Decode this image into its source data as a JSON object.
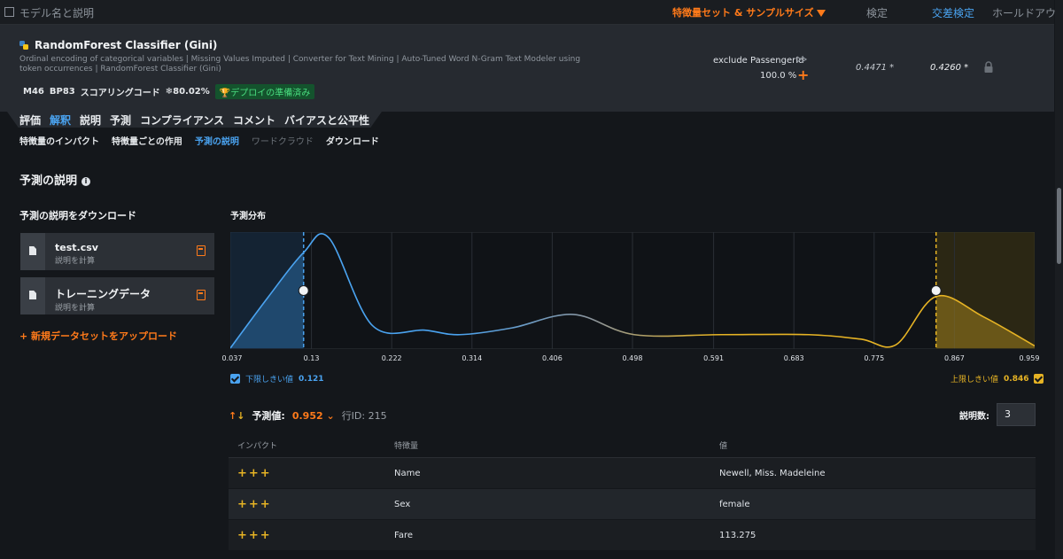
{
  "header": {
    "model_col": "モデル名と説明",
    "featureset": "特徴量セット & サンプルサイズ",
    "validation": "検定",
    "cross_validation": "交差検定",
    "holdout": "ホールドアウト"
  },
  "model": {
    "name": "RandomForest Classifier (Gini)",
    "description": "Ordinal encoding of categorical variables | Missing Values Imputed | Converter for Text Mining | Auto-Tuned Word N-Gram Text Modeler using token occurrences | RandomForest Classifier (Gini)",
    "m": "M46",
    "bp": "BP83",
    "scoring": "スコアリングコード",
    "pct": "❄80.02%",
    "deploy": "デプロイの準備済み",
    "featureset": "exclude PassengerId",
    "sample": "100.0 %",
    "score_validation": "0.4471 *",
    "score_cross": "0.4260 *"
  },
  "tabs": [
    "評価",
    "解釈",
    "説明",
    "予測",
    "コンプライアンス",
    "コメント",
    "バイアスと公平性"
  ],
  "subtabs": [
    "特徴量のインパクト",
    "特徴量ごとの作用",
    "予測の説明",
    "ワードクラウド",
    "ダウンロード"
  ],
  "section_title": "予測の説明",
  "download": {
    "title": "予測の説明をダウンロード",
    "files": [
      {
        "name": "test.csv",
        "sub": "説明を計算"
      },
      {
        "name": "トレーニングデータ",
        "sub": "説明を計算"
      }
    ],
    "upload": "+ 新規データセットをアップロード"
  },
  "distribution": {
    "title": "予測分布",
    "ticks": [
      "0.037",
      "0.13",
      "0.222",
      "0.314",
      "0.406",
      "0.498",
      "0.591",
      "0.683",
      "0.775",
      "0.867",
      "0.959"
    ],
    "low_label": "下限しきい値",
    "low_value": "0.121",
    "high_label": "上限しきい値",
    "high_value": "0.846",
    "colors": {
      "low": "#4aa3f0",
      "high": "#e6b324",
      "mid": "#8b949c"
    }
  },
  "chart_data": {
    "type": "area",
    "title": "予測分布",
    "x_ticks": [
      0.037,
      0.13,
      0.222,
      0.314,
      0.406,
      0.498,
      0.591,
      0.683,
      0.775,
      0.867,
      0.959
    ],
    "xlim": [
      0.037,
      0.959
    ],
    "x": [
      0.037,
      0.08,
      0.121,
      0.15,
      0.2,
      0.26,
      0.3,
      0.36,
      0.43,
      0.5,
      0.6,
      0.7,
      0.76,
      0.8,
      0.846,
      0.9,
      0.959
    ],
    "density": [
      0.0,
      0.45,
      0.85,
      0.98,
      0.2,
      0.16,
      0.12,
      0.18,
      0.3,
      0.12,
      0.12,
      0.12,
      0.08,
      0.03,
      0.46,
      0.28,
      0.02
    ],
    "thresholds": {
      "low": 0.121,
      "high": 0.846
    }
  },
  "prediction": {
    "label": "予測値:",
    "value": "0.952",
    "rowid": "行ID: 215",
    "count_label": "説明数:",
    "count": "3"
  },
  "table": {
    "headers": [
      "インパクト",
      "特徴量",
      "値"
    ],
    "rows": [
      {
        "impact": "+++",
        "feature": "Name",
        "value": "Newell, Miss. Madeleine"
      },
      {
        "impact": "+++",
        "feature": "Sex",
        "value": "female"
      },
      {
        "impact": "+++",
        "feature": "Fare",
        "value": "113.275"
      }
    ]
  }
}
